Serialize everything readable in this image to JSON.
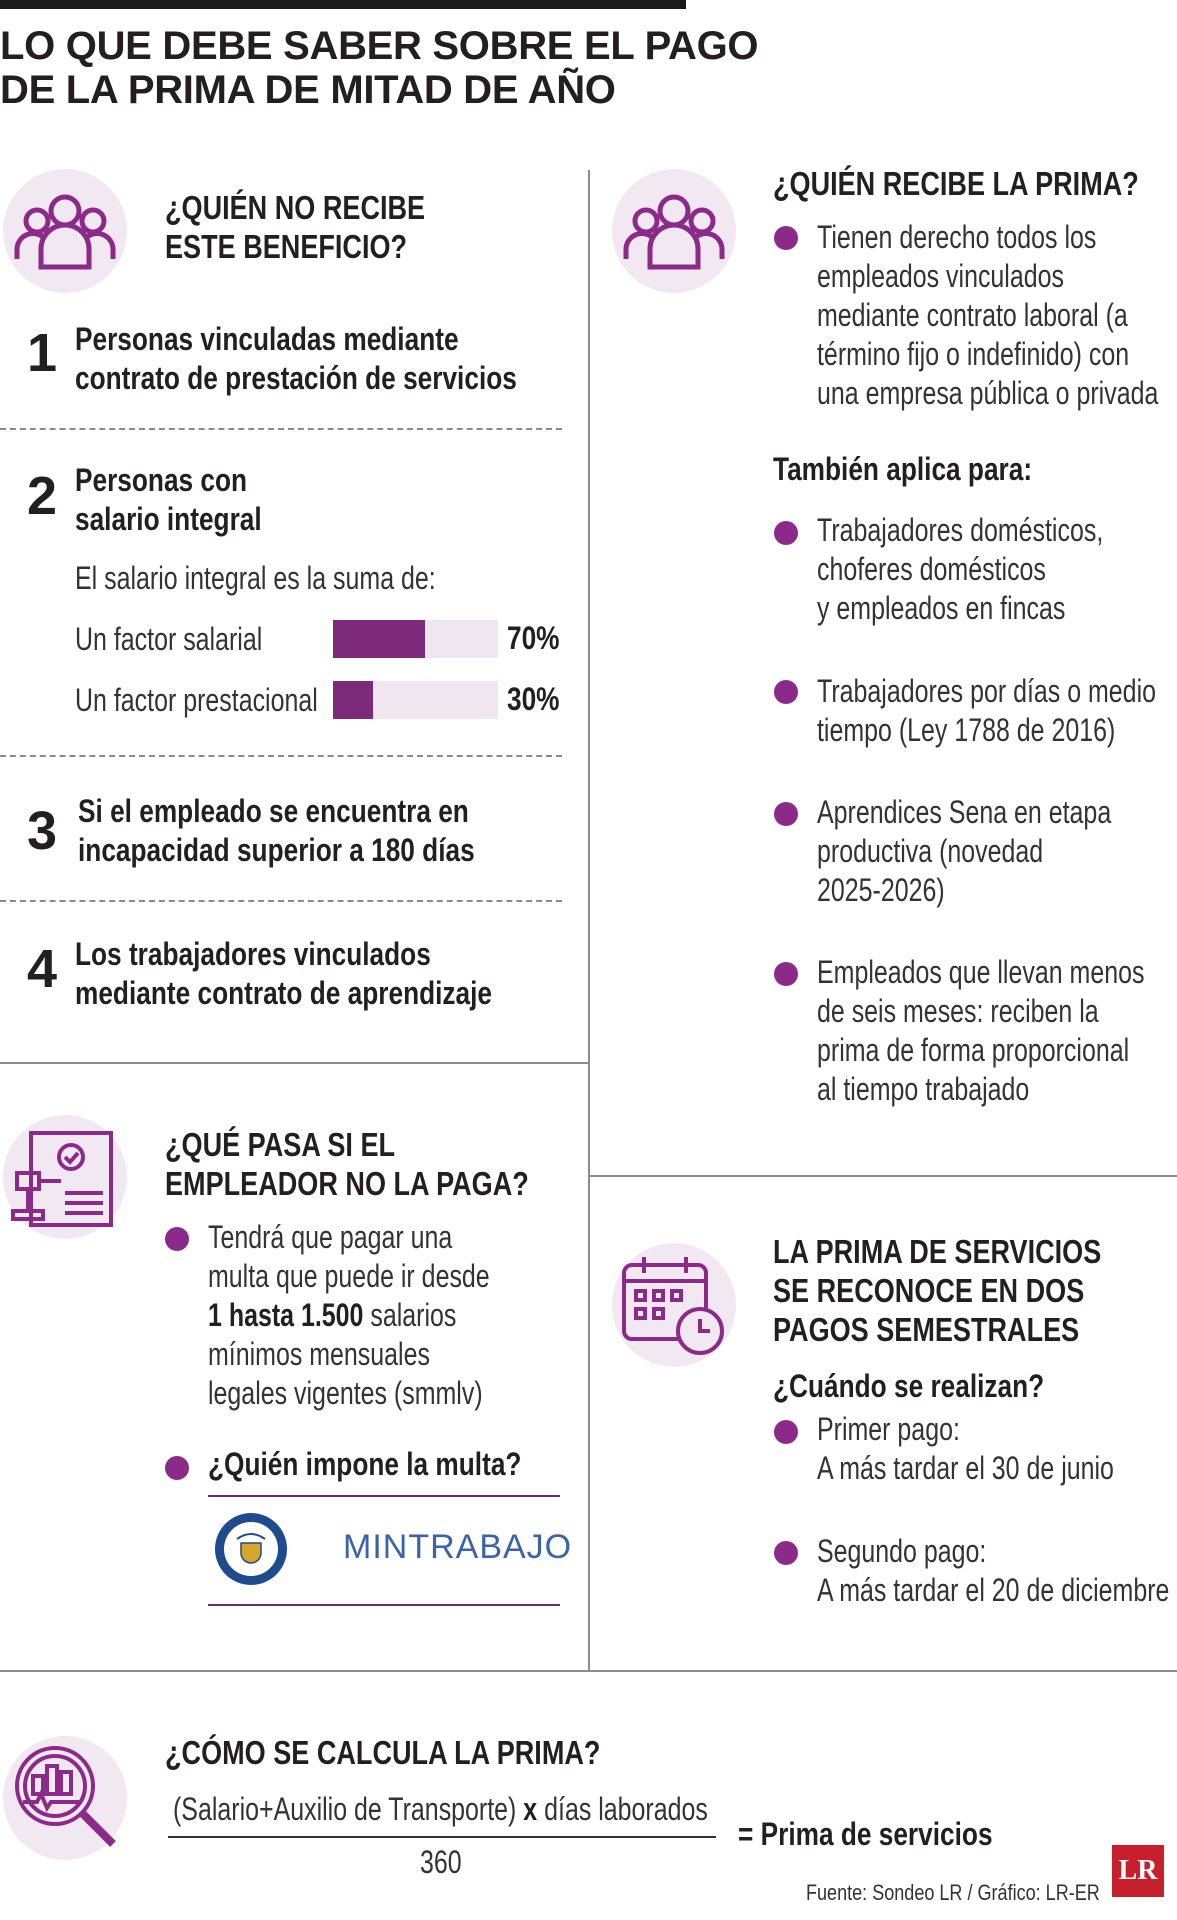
{
  "title": {
    "line1": "LO QUE DEBE SABER SOBRE EL PAGO",
    "line2": "DE LA PRIMA DE MITAD DE AÑO"
  },
  "no_recibe": {
    "heading_line1": "¿QUIÉN NO RECIBE",
    "heading_line2": "ESTE BENEFICIO?",
    "icon": "people-group-icon",
    "items": [
      {
        "number": "1",
        "line1": "Personas vinculadas mediante",
        "line2": "contrato de prestación de servicios"
      },
      {
        "number": "2",
        "line1": "Personas con",
        "line2": "salario integral"
      },
      {
        "number": "3",
        "line1": "Si el empleado se encuentra en",
        "line2": "incapacidad superior a 180 días"
      },
      {
        "number": "4",
        "line1": "Los trabajadores vinculados",
        "line2": "mediante contrato de aprendizaje"
      }
    ],
    "salario_integral": {
      "intro": "El salario integral es la suma de:",
      "factors": [
        {
          "label": "Un factor salarial",
          "value": 70,
          "pct_label": "70%"
        },
        {
          "label": "Un factor prestacional",
          "value": 30,
          "pct_label": "30%"
        }
      ]
    }
  },
  "recibe": {
    "heading": "¿QUIÉN RECIBE LA PRIMA?",
    "icon": "people-group-icon",
    "main_bullet": [
      "Tienen derecho todos los",
      "empleados vinculados",
      "mediante contrato laboral (a",
      "término fijo o indefinido) con",
      "una empresa pública o privada"
    ],
    "tambien_heading": "También aplica para:",
    "tambien_items": [
      [
        "Trabajadores domésticos,",
        "choferes domésticos",
        "y empleados en fincas"
      ],
      [
        "Trabajadores por días o medio",
        "tiempo (Ley 1788 de 2016)"
      ],
      [
        "Aprendices Sena en etapa",
        "productiva (novedad",
        "2025-2026)"
      ],
      [
        "Empleados que llevan menos",
        "de seis meses: reciben la",
        "prima de forma proporcional",
        "al tiempo trabajado"
      ]
    ]
  },
  "no_paga": {
    "heading_line1": "¿QUÉ PASA SI EL",
    "heading_line2": "EMPLEADOR NO LA PAGA?",
    "icon": "gavel-document-icon",
    "bullet1": {
      "line1": "Tendrá que pagar una",
      "line2": "multa que puede ir desde",
      "line3_bold": "1 hasta 1.500",
      "line3_rest": " salarios",
      "line4": "mínimos mensuales",
      "line5": "legales vigentes (smmlv)"
    },
    "bullet2": "¿Quién impone la multa?",
    "seal_icon": "colombia-seal-icon",
    "entity": "MINTRABAJO"
  },
  "pagos": {
    "heading_line1": "LA PRIMA DE SERVICIOS",
    "heading_line2": "SE RECONOCE EN DOS",
    "heading_line3": "PAGOS SEMESTRALES",
    "icon": "calendar-clock-icon",
    "cuando": "¿Cuándo se realizan?",
    "pago1": {
      "label": "Primer pago:",
      "date": "A más tardar el 30 de junio"
    },
    "pago2": {
      "label": "Segundo pago:",
      "date": "A más tardar el 20 de diciembre"
    }
  },
  "calculo": {
    "heading": "¿CÓMO SE CALCULA LA PRIMA?",
    "icon": "magnifier-chart-icon",
    "numerator_a": "(Salario+Auxilio de Transporte) ",
    "numerator_x": "x",
    "numerator_b": " días laborados",
    "denominator": "360",
    "result": "= Prima de servicios"
  },
  "footer": {
    "source": "Fuente: Sondeo LR / Gráfico: LR-ER",
    "logo": "LR"
  },
  "colors": {
    "accent": "#7d2a7a",
    "bullet": "#8c2a8a",
    "circle_bg": "#f1e8f1",
    "bar_bg": "#f0e6ef",
    "mintrabajo": "#3b63a6",
    "logo": "#c7202c"
  }
}
